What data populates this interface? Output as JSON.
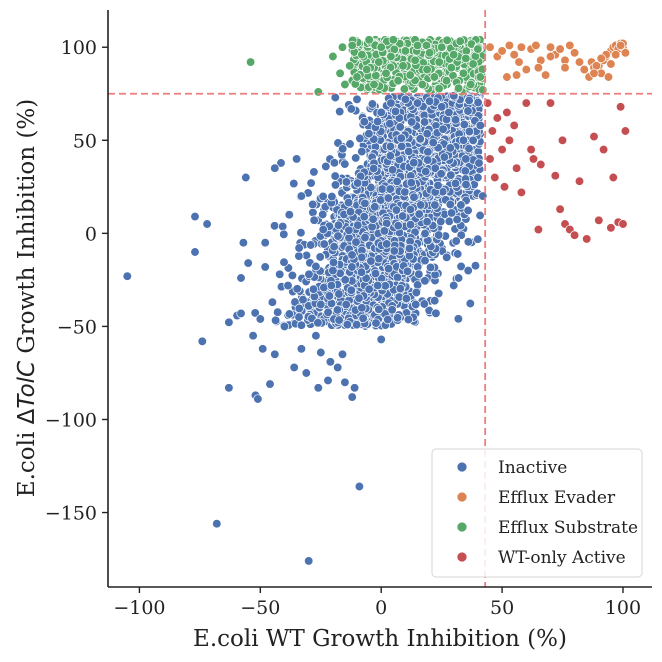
{
  "chart_data": {
    "type": "scatter",
    "title": "",
    "xlabel": "E.coli WT Growth Inhibition (%)",
    "ylabel_prefix": "E.coli ",
    "ylabel_delta": "Δ",
    "ylabel_italic": "TolC",
    "ylabel_suffix": " Growth Inhibition (%)",
    "xlim": [
      -113,
      112
    ],
    "ylim": [
      -190,
      120
    ],
    "xticks": [
      -100,
      -50,
      0,
      50,
      100
    ],
    "yticks": [
      -150,
      -100,
      -50,
      0,
      50,
      100
    ],
    "xtick_labels": [
      "−100",
      "−50",
      "0",
      "50",
      "100"
    ],
    "ytick_labels": [
      "−150",
      "−100",
      "−50",
      "0",
      "50",
      "100"
    ],
    "threshold_x": 43,
    "threshold_y": 75,
    "threshold_color": "#f07c7c",
    "legend_position": "lower-right",
    "grid": false,
    "series": [
      {
        "name": "Inactive",
        "color": "#4c72b0",
        "sample_points": [
          [
            -105,
            -23
          ],
          [
            -77,
            9
          ],
          [
            -77,
            -10
          ],
          [
            -74,
            -58
          ],
          [
            -72,
            5
          ],
          [
            -68,
            -156
          ],
          [
            -63,
            -83
          ],
          [
            -58,
            -24
          ],
          [
            -58,
            -43
          ],
          [
            -57,
            -5
          ],
          [
            -56,
            30
          ],
          [
            -55,
            -16
          ],
          [
            -53,
            -55
          ],
          [
            -52,
            -87
          ],
          [
            -51,
            -89
          ],
          [
            -50,
            -46
          ],
          [
            -49,
            -62
          ],
          [
            -48,
            -5
          ],
          [
            -48,
            -18
          ],
          [
            -46,
            -81
          ],
          [
            -45,
            -37
          ],
          [
            -44,
            -65
          ],
          [
            -44,
            35
          ],
          [
            -42,
            -22
          ],
          [
            -40,
            -50
          ],
          [
            -38,
            10
          ],
          [
            -36,
            -72
          ],
          [
            -35,
            40
          ],
          [
            -34,
            -45
          ],
          [
            -33,
            -62
          ],
          [
            -33,
            20
          ],
          [
            -31,
            -75
          ],
          [
            -30,
            -176
          ],
          [
            -29,
            27
          ],
          [
            -28,
            -30
          ],
          [
            -27,
            -55
          ],
          [
            -26,
            -83
          ],
          [
            -25,
            -64
          ],
          [
            -24,
            2
          ],
          [
            -22,
            -79
          ],
          [
            -21,
            -69
          ],
          [
            -20,
            -20
          ],
          [
            -19,
            73
          ],
          [
            -18,
            -72
          ],
          [
            -16,
            -65
          ],
          [
            -15,
            -80
          ],
          [
            -14,
            -49
          ],
          [
            -12,
            -88
          ],
          [
            -11,
            -83
          ],
          [
            -10,
            72
          ],
          [
            -9,
            -136
          ],
          [
            -8,
            -40
          ],
          [
            -7,
            60
          ],
          [
            -5,
            -30
          ],
          [
            0,
            -57
          ],
          [
            0,
            65
          ],
          [
            4,
            70
          ],
          [
            10,
            72
          ],
          [
            15,
            70
          ],
          [
            20,
            71
          ],
          [
            25,
            68
          ],
          [
            28,
            65
          ],
          [
            30,
            -28
          ],
          [
            32,
            -24
          ],
          [
            35,
            40
          ],
          [
            36,
            -20
          ],
          [
            38,
            50
          ],
          [
            40,
            30
          ],
          [
            41,
            58
          ],
          [
            42,
            20
          ]
        ]
      },
      {
        "name": "Efflux Evader",
        "color": "#dd8452",
        "sample_points": [
          [
            45,
            100
          ],
          [
            48,
            95
          ],
          [
            50,
            98
          ],
          [
            52,
            84
          ],
          [
            53,
            101
          ],
          [
            55,
            96
          ],
          [
            57,
            92
          ],
          [
            58,
            100
          ],
          [
            60,
            88
          ],
          [
            62,
            99
          ],
          [
            64,
            101
          ],
          [
            66,
            93
          ],
          [
            68,
            85
          ],
          [
            70,
            100
          ],
          [
            72,
            96
          ],
          [
            74,
            99
          ],
          [
            76,
            93
          ],
          [
            78,
            101
          ],
          [
            80,
            97
          ],
          [
            82,
            92
          ],
          [
            84,
            88
          ],
          [
            86,
            84
          ],
          [
            87,
            92
          ],
          [
            88,
            89
          ],
          [
            90,
            90
          ],
          [
            91,
            86
          ],
          [
            92,
            93
          ],
          [
            93,
            95
          ],
          [
            94,
            84
          ],
          [
            95,
            98
          ],
          [
            96,
            100
          ],
          [
            97,
            101
          ],
          [
            98,
            99
          ],
          [
            99,
            102
          ],
          [
            100,
            100
          ],
          [
            101,
            97
          ],
          [
            100,
            102
          ],
          [
            99,
            101
          ],
          [
            97,
            96
          ],
          [
            95,
            91
          ],
          [
            93,
            96
          ],
          [
            91,
            94
          ],
          [
            89,
            90
          ],
          [
            88,
            86
          ],
          [
            76,
            89
          ],
          [
            70,
            95
          ],
          [
            65,
            89
          ],
          [
            56,
            85
          ]
        ]
      },
      {
        "name": "Efflux Substrate",
        "color": "#55a868",
        "sample_points": [
          [
            -54,
            92
          ],
          [
            -26,
            76
          ],
          [
            -20,
            95
          ],
          [
            -17,
            86
          ],
          [
            -16,
            100
          ],
          [
            -15,
            80
          ],
          [
            -13,
            90
          ],
          [
            -12,
            101
          ],
          [
            -10,
            84
          ],
          [
            -8,
            96
          ],
          [
            -6,
            88
          ],
          [
            -5,
            104
          ],
          [
            -3,
            80
          ],
          [
            -1,
            92
          ],
          [
            0,
            100
          ],
          [
            2,
            86
          ],
          [
            4,
            95
          ],
          [
            5,
            104
          ],
          [
            7,
            82
          ],
          [
            9,
            90
          ],
          [
            10,
            98
          ],
          [
            12,
            85
          ],
          [
            14,
            93
          ],
          [
            15,
            101
          ],
          [
            17,
            80
          ],
          [
            19,
            88
          ],
          [
            20,
            97
          ],
          [
            22,
            84
          ],
          [
            24,
            92
          ],
          [
            25,
            100
          ],
          [
            27,
            82
          ],
          [
            29,
            89
          ],
          [
            30,
            96
          ],
          [
            32,
            78
          ],
          [
            34,
            86
          ],
          [
            35,
            94
          ],
          [
            37,
            80
          ],
          [
            38,
            91
          ],
          [
            40,
            99
          ],
          [
            41,
            84
          ],
          [
            42,
            77
          ]
        ]
      },
      {
        "name": "WT-only Active",
        "color": "#c44e52",
        "sample_points": [
          [
            44,
            70
          ],
          [
            45,
            40
          ],
          [
            46,
            55
          ],
          [
            47,
            30
          ],
          [
            48,
            62
          ],
          [
            50,
            45
          ],
          [
            51,
            25
          ],
          [
            52,
            65
          ],
          [
            53,
            50
          ],
          [
            55,
            58
          ],
          [
            56,
            35
          ],
          [
            58,
            22
          ],
          [
            60,
            70
          ],
          [
            62,
            45
          ],
          [
            63,
            40
          ],
          [
            65,
            2
          ],
          [
            66,
            37
          ],
          [
            70,
            70
          ],
          [
            72,
            31
          ],
          [
            74,
            13
          ],
          [
            75,
            50
          ],
          [
            76,
            5
          ],
          [
            78,
            2
          ],
          [
            80,
            -1
          ],
          [
            82,
            28
          ],
          [
            85,
            -3
          ],
          [
            88,
            52
          ],
          [
            90,
            7
          ],
          [
            92,
            45
          ],
          [
            95,
            3
          ],
          [
            96,
            30
          ],
          [
            98,
            6
          ],
          [
            99,
            68
          ],
          [
            100,
            5
          ],
          [
            101,
            55
          ]
        ]
      }
    ],
    "dense_cloud": {
      "series": "Inactive",
      "x_center_base": 2,
      "x_center_slope": 0.34,
      "x_spread": 14,
      "y_min": -50,
      "y_max": 74,
      "count": 2600
    },
    "dense_band": {
      "series": "Efflux Substrate",
      "x_min": -12,
      "x_max": 42,
      "y_min": 76,
      "y_max": 104,
      "count": 520
    }
  }
}
